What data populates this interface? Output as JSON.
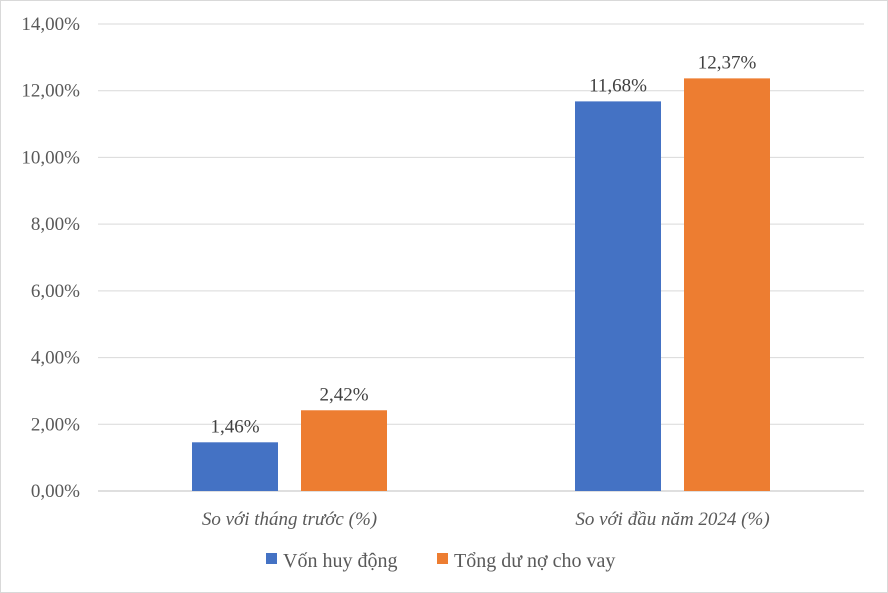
{
  "chart_data": {
    "type": "bar",
    "categories": [
      "So với tháng trước (%)",
      "So với đầu năm 2024 (%)"
    ],
    "series": [
      {
        "name": "Vốn huy động",
        "values": [
          1.46,
          11.68
        ],
        "labels": [
          "1,46%",
          "11,68%"
        ],
        "color": "#4472C4"
      },
      {
        "name": "Tổng dư nợ cho vay",
        "values": [
          2.42,
          12.37
        ],
        "labels": [
          "2,42%",
          "12,37%"
        ],
        "color": "#ED7D31"
      }
    ],
    "ylim": [
      0,
      14
    ],
    "yticks": [
      0,
      2,
      4,
      6,
      8,
      10,
      12,
      14
    ],
    "ytick_labels": [
      "0,00%",
      "2,00%",
      "4,00%",
      "6,00%",
      "8,00%",
      "10,00%",
      "12,00%",
      "14,00%"
    ],
    "grid": true,
    "legend": "bottom",
    "title": "",
    "xlabel": "",
    "ylabel": ""
  }
}
